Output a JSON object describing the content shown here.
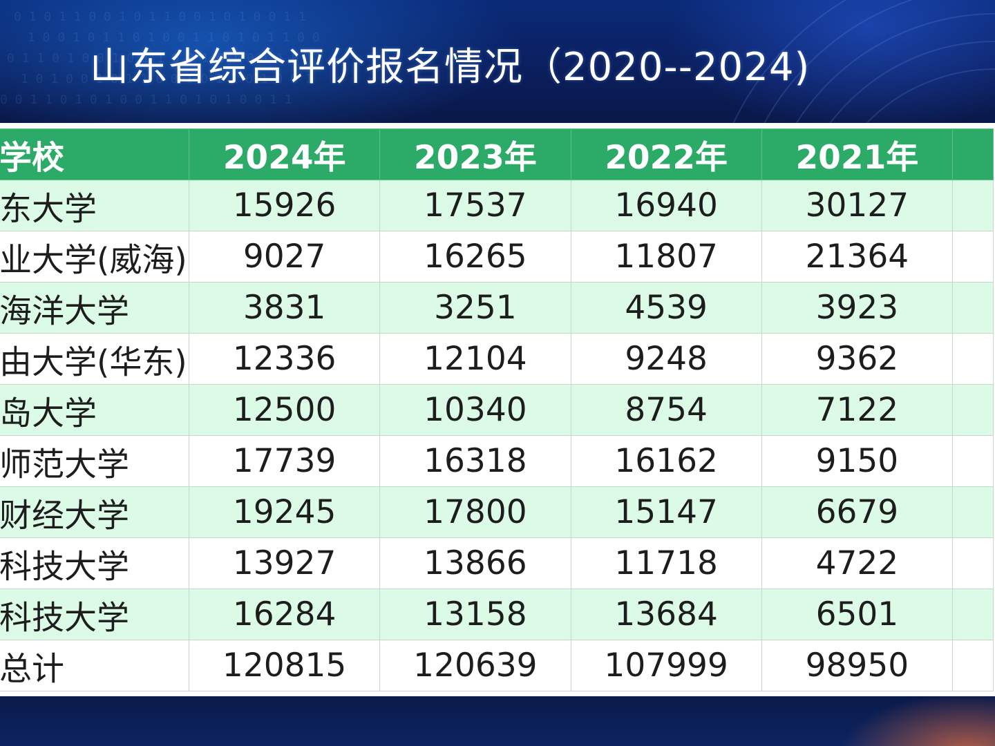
{
  "slide": {
    "title": "山东省综合评价报名情况（2020--2024)"
  },
  "table": {
    "headers": [
      "学校",
      "2024年",
      "2023年",
      "2022年",
      "2021年",
      ""
    ],
    "rows": [
      {
        "school": "东大学",
        "v2024": "15926",
        "v2023": "17537",
        "v2022": "16940",
        "v2021": "30127",
        "v2020": ""
      },
      {
        "school": "业大学(威海)",
        "v2024": "9027",
        "v2023": "16265",
        "v2022": "11807",
        "v2021": "21364",
        "v2020": ""
      },
      {
        "school": "海洋大学",
        "v2024": "3831",
        "v2023": "3251",
        "v2022": "4539",
        "v2021": "3923",
        "v2020": ""
      },
      {
        "school": "由大学(华东)",
        "v2024": "12336",
        "v2023": "12104",
        "v2022": "9248",
        "v2021": "9362",
        "v2020": ""
      },
      {
        "school": "岛大学",
        "v2024": "12500",
        "v2023": "10340",
        "v2022": "8754",
        "v2021": "7122",
        "v2020": ""
      },
      {
        "school": "师范大学",
        "v2024": "17739",
        "v2023": "16318",
        "v2022": "16162",
        "v2021": "9150",
        "v2020": ""
      },
      {
        "school": "财经大学",
        "v2024": "19245",
        "v2023": "17800",
        "v2022": "15147",
        "v2021": "6679",
        "v2020": ""
      },
      {
        "school": "科技大学",
        "v2024": "13927",
        "v2023": "13866",
        "v2022": "11718",
        "v2021": "4722",
        "v2020": ""
      },
      {
        "school": "科技大学",
        "v2024": "16284",
        "v2023": "13158",
        "v2022": "13684",
        "v2021": "6501",
        "v2020": ""
      },
      {
        "school": "总计",
        "v2024": "120815",
        "v2023": "120639",
        "v2022": "107999",
        "v2021": "98950",
        "v2020": ""
      }
    ]
  },
  "colors": {
    "header_green": "#2bab67",
    "alt_row_green": "#dcfbe7",
    "title_text": "#ffffff",
    "background_blue": "#0b1f5e"
  }
}
